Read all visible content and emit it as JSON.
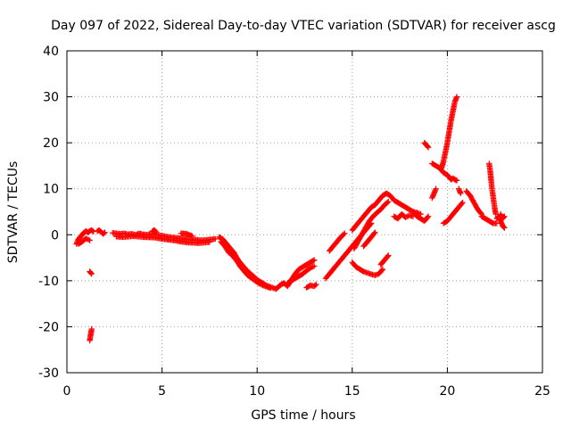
{
  "chart_data": {
    "type": "scatter",
    "title": "Day 097 of 2022, Sidereal Day-to-day VTEC variation (SDTVAR) for receiver ascg",
    "xlabel": "GPS time / hours",
    "ylabel": "SDTVAR / TECUs",
    "xlim": [
      0,
      25
    ],
    "ylim": [
      -30,
      40
    ],
    "x_ticks": [
      0,
      5,
      10,
      15,
      20,
      25
    ],
    "y_ticks": [
      -30,
      -20,
      -10,
      0,
      10,
      20,
      30,
      40
    ],
    "x_tick_labels": [
      "0",
      "5",
      "10",
      "15",
      "20",
      "25"
    ],
    "y_tick_labels": [
      "-30",
      "-20",
      "-10",
      "0",
      "10",
      "20",
      "30",
      "40"
    ],
    "grid": true,
    "marker": "+",
    "series": [
      {
        "name": "SDTVAR",
        "color": "#ff0000",
        "segments": [
          {
            "x": [
              0.5,
              0.6,
              0.7,
              0.8,
              0.9,
              1.0,
              1.1,
              1.2,
              1.3,
              1.4
            ],
            "y": [
              -2.0,
              -1.0,
              -0.5,
              0.0,
              0.5,
              0.8,
              0.5,
              0.8,
              1.0,
              0.7
            ]
          },
          {
            "x": [
              0.6,
              0.8,
              1.0,
              1.2
            ],
            "y": [
              -2.0,
              -1.5,
              -0.8,
              -1.2
            ]
          },
          {
            "x": [
              1.6,
              1.7,
              1.8,
              1.9,
              2.0
            ],
            "y": [
              0.8,
              1.0,
              0.6,
              0.2,
              0.5
            ]
          },
          {
            "x": [
              1.2,
              1.3
            ],
            "y": [
              -8.0,
              -8.5
            ]
          },
          {
            "x": [
              1.2,
              1.22,
              1.24,
              1.26,
              1.28,
              1.3
            ],
            "y": [
              -23.0,
              -22.5,
              -22.0,
              -21.5,
              -21.0,
              -20.5
            ]
          },
          {
            "x": [
              2.4,
              2.6,
              2.8,
              3.0,
              3.2,
              3.4,
              3.6,
              3.8,
              4.0,
              4.2,
              4.4,
              4.6,
              4.8,
              5.0,
              5.2,
              5.4,
              5.6,
              5.8,
              6.0,
              6.2,
              6.4,
              6.6,
              6.8,
              7.0,
              7.2,
              7.4,
              7.6,
              7.8
            ],
            "y": [
              0.4,
              0.3,
              0.2,
              0.3,
              0.1,
              0.2,
              0.0,
              0.3,
              0.1,
              0.0,
              0.2,
              0.1,
              -0.1,
              -0.2,
              -0.4,
              -0.5,
              -0.6,
              -0.7,
              -0.8,
              -0.9,
              -1.0,
              -1.1,
              -1.1,
              -1.2,
              -1.2,
              -1.1,
              -1.0,
              -0.9
            ]
          },
          {
            "x": [
              2.6,
              3.0,
              3.5,
              4.0,
              4.6,
              5.0,
              5.6,
              6.0,
              6.4,
              7.0,
              7.5
            ],
            "y": [
              -0.4,
              -0.5,
              -0.3,
              -0.5,
              -0.6,
              -0.9,
              -1.2,
              -1.5,
              -1.7,
              -1.8,
              -1.6
            ]
          },
          {
            "x": [
              4.5,
              4.6,
              4.7
            ],
            "y": [
              0.8,
              1.0,
              0.6
            ]
          },
          {
            "x": [
              6.0,
              6.3,
              6.6
            ],
            "y": [
              0.3,
              0.2,
              -0.3
            ]
          },
          {
            "x": [
              8.0,
              8.2,
              8.4,
              8.6,
              8.8,
              9.0,
              9.2,
              9.4,
              9.6,
              9.8,
              10.0,
              10.2,
              10.4,
              10.6,
              10.8,
              11.0
            ],
            "y": [
              -0.5,
              -1.0,
              -2.0,
              -3.0,
              -4.0,
              -5.5,
              -6.5,
              -7.5,
              -8.3,
              -9.0,
              -9.8,
              -10.3,
              -10.8,
              -11.2,
              -11.5,
              -11.8
            ]
          },
          {
            "x": [
              8.1,
              8.3,
              8.5,
              8.7,
              8.9,
              9.1,
              9.3,
              9.5,
              9.7,
              9.9,
              10.1,
              10.3,
              10.5,
              10.7
            ],
            "y": [
              -1.5,
              -2.5,
              -3.8,
              -4.5,
              -5.5,
              -6.8,
              -7.8,
              -8.8,
              -9.4,
              -10.0,
              -10.6,
              -11.0,
              -11.3,
              -11.6
            ]
          },
          {
            "x": [
              11.0,
              11.2,
              11.4,
              11.6,
              11.8,
              12.0,
              12.2,
              12.4,
              12.6,
              12.8,
              13.0
            ],
            "y": [
              -11.8,
              -11.0,
              -10.5,
              -11.2,
              -9.8,
              -8.5,
              -7.5,
              -7.0,
              -6.5,
              -6.0,
              -5.5
            ]
          },
          {
            "x": [
              11.6,
              11.8,
              12.0,
              12.2,
              12.4,
              12.6,
              12.8,
              13.0
            ],
            "y": [
              -10.5,
              -10.0,
              -9.5,
              -9.0,
              -8.5,
              -7.8,
              -7.2,
              -6.8
            ]
          },
          {
            "x": [
              12.6,
              12.8,
              13.0,
              13.1
            ],
            "y": [
              -11.5,
              -11.0,
              -11.2,
              -10.8
            ]
          },
          {
            "x": [
              13.6,
              13.8,
              14.0,
              14.2,
              14.4,
              14.6,
              14.8,
              15.0,
              15.2,
              15.4,
              15.6,
              15.8,
              16.0
            ],
            "y": [
              -9.5,
              -8.5,
              -7.5,
              -6.5,
              -5.5,
              -4.5,
              -3.5,
              -2.5,
              -1.5,
              -0.5,
              0.5,
              1.5,
              2.5
            ]
          },
          {
            "x": [
              13.8,
              14.0,
              14.2,
              14.4,
              14.6
            ],
            "y": [
              -3.5,
              -2.5,
              -1.5,
              -0.5,
              0.3
            ]
          },
          {
            "x": [
              15.0,
              15.2,
              15.4,
              15.6,
              15.8,
              16.0,
              16.2,
              16.4,
              16.6,
              16.8
            ],
            "y": [
              1.0,
              2.0,
              3.0,
              4.0,
              5.0,
              6.0,
              6.5,
              7.5,
              8.5,
              9.0
            ]
          },
          {
            "x": [
              15.1,
              15.3,
              15.5,
              15.7,
              15.9,
              16.1,
              16.3,
              16.5,
              16.7,
              16.9
            ],
            "y": [
              -3.0,
              -1.5,
              0.0,
              1.5,
              3.0,
              4.0,
              4.8,
              5.5,
              6.5,
              7.2
            ]
          },
          {
            "x": [
              15.0,
              15.2,
              15.4,
              15.6,
              15.8,
              16.0,
              16.2,
              16.4,
              16.6
            ],
            "y": [
              -6.0,
              -7.0,
              -7.5,
              -8.0,
              -8.3,
              -8.6,
              -8.8,
              -8.5,
              -7.5
            ]
          },
          {
            "x": [
              16.5,
              16.6,
              16.7,
              16.8,
              16.9
            ],
            "y": [
              -6.5,
              -6.0,
              -5.5,
              -5.0,
              -4.5
            ]
          },
          {
            "x": [
              15.6,
              15.8,
              16.0,
              16.2
            ],
            "y": [
              -2.5,
              -1.5,
              -0.5,
              0.5
            ]
          },
          {
            "x": [
              16.8,
              17.0,
              17.2,
              17.4,
              17.6,
              17.8,
              18.0,
              18.2,
              18.4,
              18.6
            ],
            "y": [
              9.0,
              8.5,
              7.5,
              7.0,
              6.5,
              6.0,
              5.5,
              5.0,
              4.8,
              4.5
            ]
          },
          {
            "x": [
              17.2,
              17.4,
              17.6,
              17.8,
              18.0,
              18.2
            ],
            "y": [
              4.0,
              3.5,
              4.5,
              3.8,
              4.2,
              4.0
            ]
          },
          {
            "x": [
              18.2,
              18.4,
              18.6,
              18.8,
              19.0
            ],
            "y": [
              5.0,
              4.0,
              3.5,
              3.0,
              4.0
            ]
          },
          {
            "x": [
              18.8,
              18.9,
              19.0
            ],
            "y": [
              20.0,
              19.5,
              19.0
            ]
          },
          {
            "x": [
              19.2,
              19.4,
              19.6,
              19.8,
              20.0
            ],
            "y": [
              15.5,
              15.0,
              14.5,
              13.5,
              13.0
            ]
          },
          {
            "x": [
              19.2,
              19.3,
              19.4
            ],
            "y": [
              8.0,
              9.0,
              10.0
            ]
          },
          {
            "x": [
              19.7,
              19.8,
              19.9,
              20.0,
              20.1,
              20.2,
              20.3,
              20.4,
              20.5
            ],
            "y": [
              14.5,
              16.0,
              18.0,
              20.0,
              22.5,
              25.0,
              27.0,
              29.0,
              30.0
            ]
          },
          {
            "x": [
              20.0,
              20.1,
              20.2,
              20.3,
              20.4,
              20.5
            ],
            "y": [
              13.0,
              12.5,
              12.0,
              12.3,
              12.0,
              11.8
            ]
          },
          {
            "x": [
              19.8,
              20.0,
              20.2,
              20.4,
              20.6,
              20.8
            ],
            "y": [
              2.5,
              3.0,
              4.0,
              5.0,
              6.0,
              7.0
            ]
          },
          {
            "x": [
              20.6,
              20.7
            ],
            "y": [
              10.0,
              9.0
            ]
          },
          {
            "x": [
              21.0,
              21.2,
              21.4,
              21.6,
              21.8
            ],
            "y": [
              9.5,
              8.5,
              7.0,
              5.5,
              4.5
            ]
          },
          {
            "x": [
              21.8,
              22.0,
              22.2,
              22.4,
              22.6
            ],
            "y": [
              4.0,
              3.5,
              3.0,
              2.5,
              2.5
            ]
          },
          {
            "x": [
              22.2,
              22.25,
              22.3,
              22.35,
              22.4,
              22.45,
              22.5,
              22.55
            ],
            "y": [
              15.5,
              14.0,
              12.0,
              10.0,
              8.5,
              7.0,
              5.5,
              4.5
            ]
          },
          {
            "x": [
              22.6,
              22.7,
              22.8,
              22.9,
              23.0
            ],
            "y": [
              3.5,
              4.0,
              3.0,
              2.0,
              1.5
            ]
          },
          {
            "x": [
              22.8,
              22.9,
              23.0
            ],
            "y": [
              4.5,
              3.5,
              4.0
            ]
          }
        ]
      }
    ]
  }
}
